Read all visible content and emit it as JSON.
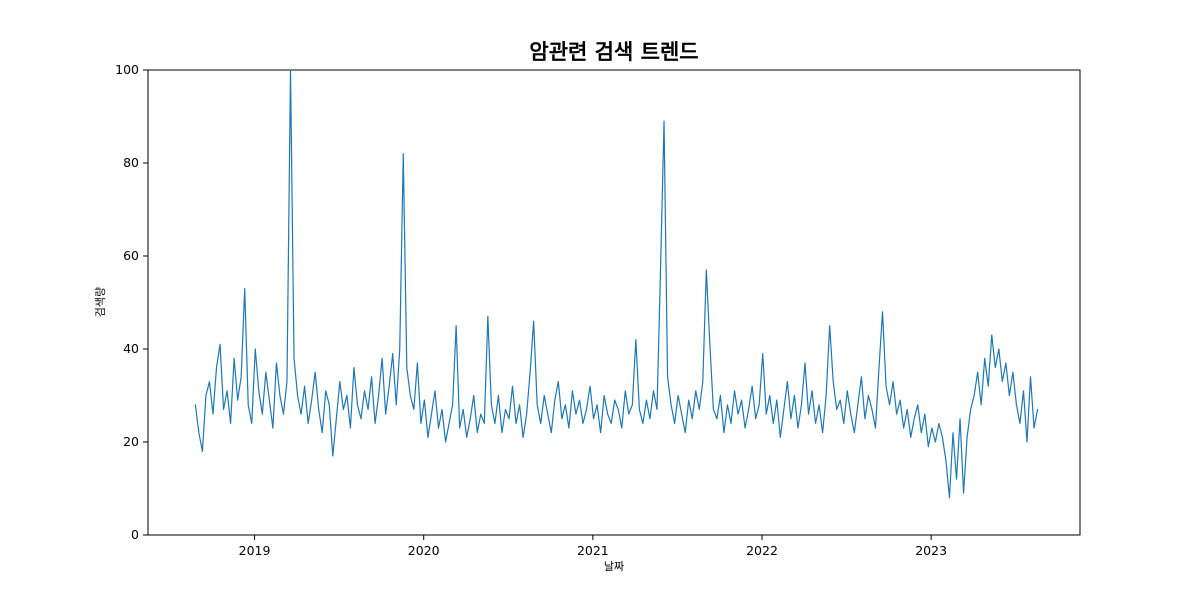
{
  "figure": {
    "background": "#ffffff",
    "frame_color": "#000000"
  },
  "chart_data": {
    "type": "line",
    "title": "암관련 검색 트렌드",
    "xlabel": "날짜",
    "ylabel": "검색량",
    "line_color": "#1f77b4",
    "line_width": 1.2,
    "grid": false,
    "legend": "none",
    "xlim": [
      2018.37,
      2023.88
    ],
    "ylim": [
      0,
      100
    ],
    "x_ticks": [
      "2019",
      "2020",
      "2021",
      "2022",
      "2023"
    ],
    "x_tick_values": [
      2019,
      2020,
      2021,
      2022,
      2023
    ],
    "y_ticks": [
      "0",
      "20",
      "40",
      "60",
      "80",
      "100"
    ],
    "y_tick_values": [
      0,
      20,
      40,
      60,
      80,
      100
    ],
    "x_start": 2018.65,
    "x_step_years": 0.0208333,
    "values": [
      28,
      22,
      18,
      30,
      33,
      26,
      36,
      41,
      27,
      31,
      24,
      38,
      29,
      34,
      53,
      28,
      24,
      40,
      31,
      26,
      35,
      29,
      23,
      37,
      30,
      26,
      33,
      100,
      38,
      30,
      26,
      32,
      24,
      29,
      35,
      27,
      22,
      31,
      28,
      17,
      25,
      33,
      27,
      30,
      23,
      36,
      28,
      25,
      31,
      27,
      34,
      24,
      30,
      38,
      26,
      32,
      39,
      28,
      40,
      82,
      36,
      30,
      27,
      37,
      24,
      29,
      21,
      26,
      31,
      23,
      27,
      20,
      24,
      28,
      45,
      23,
      27,
      21,
      25,
      30,
      22,
      26,
      24,
      47,
      28,
      24,
      30,
      22,
      27,
      25,
      32,
      24,
      28,
      21,
      26,
      35,
      46,
      28,
      24,
      30,
      26,
      22,
      29,
      33,
      25,
      28,
      23,
      31,
      26,
      29,
      24,
      27,
      32,
      25,
      28,
      22,
      30,
      26,
      24,
      29,
      27,
      23,
      31,
      26,
      28,
      42,
      27,
      24,
      29,
      25,
      31,
      27,
      57,
      89,
      34,
      28,
      24,
      30,
      26,
      22,
      29,
      25,
      31,
      27,
      33,
      57,
      41,
      27,
      25,
      30,
      22,
      28,
      24,
      31,
      26,
      29,
      23,
      27,
      32,
      25,
      28,
      39,
      26,
      30,
      24,
      29,
      21,
      27,
      33,
      25,
      30,
      23,
      28,
      37,
      26,
      31,
      24,
      28,
      22,
      30,
      45,
      33,
      27,
      29,
      24,
      31,
      26,
      22,
      28,
      34,
      25,
      30,
      27,
      23,
      36,
      48,
      32,
      28,
      33,
      26,
      29,
      23,
      27,
      21,
      25,
      28,
      22,
      26,
      19,
      23,
      20,
      24,
      21,
      16,
      8,
      22,
      12,
      25,
      9,
      21,
      27,
      30,
      35,
      28,
      38,
      32,
      43,
      36,
      40,
      33,
      37,
      30,
      35,
      28,
      24,
      31,
      20,
      34,
      23,
      27
    ]
  }
}
